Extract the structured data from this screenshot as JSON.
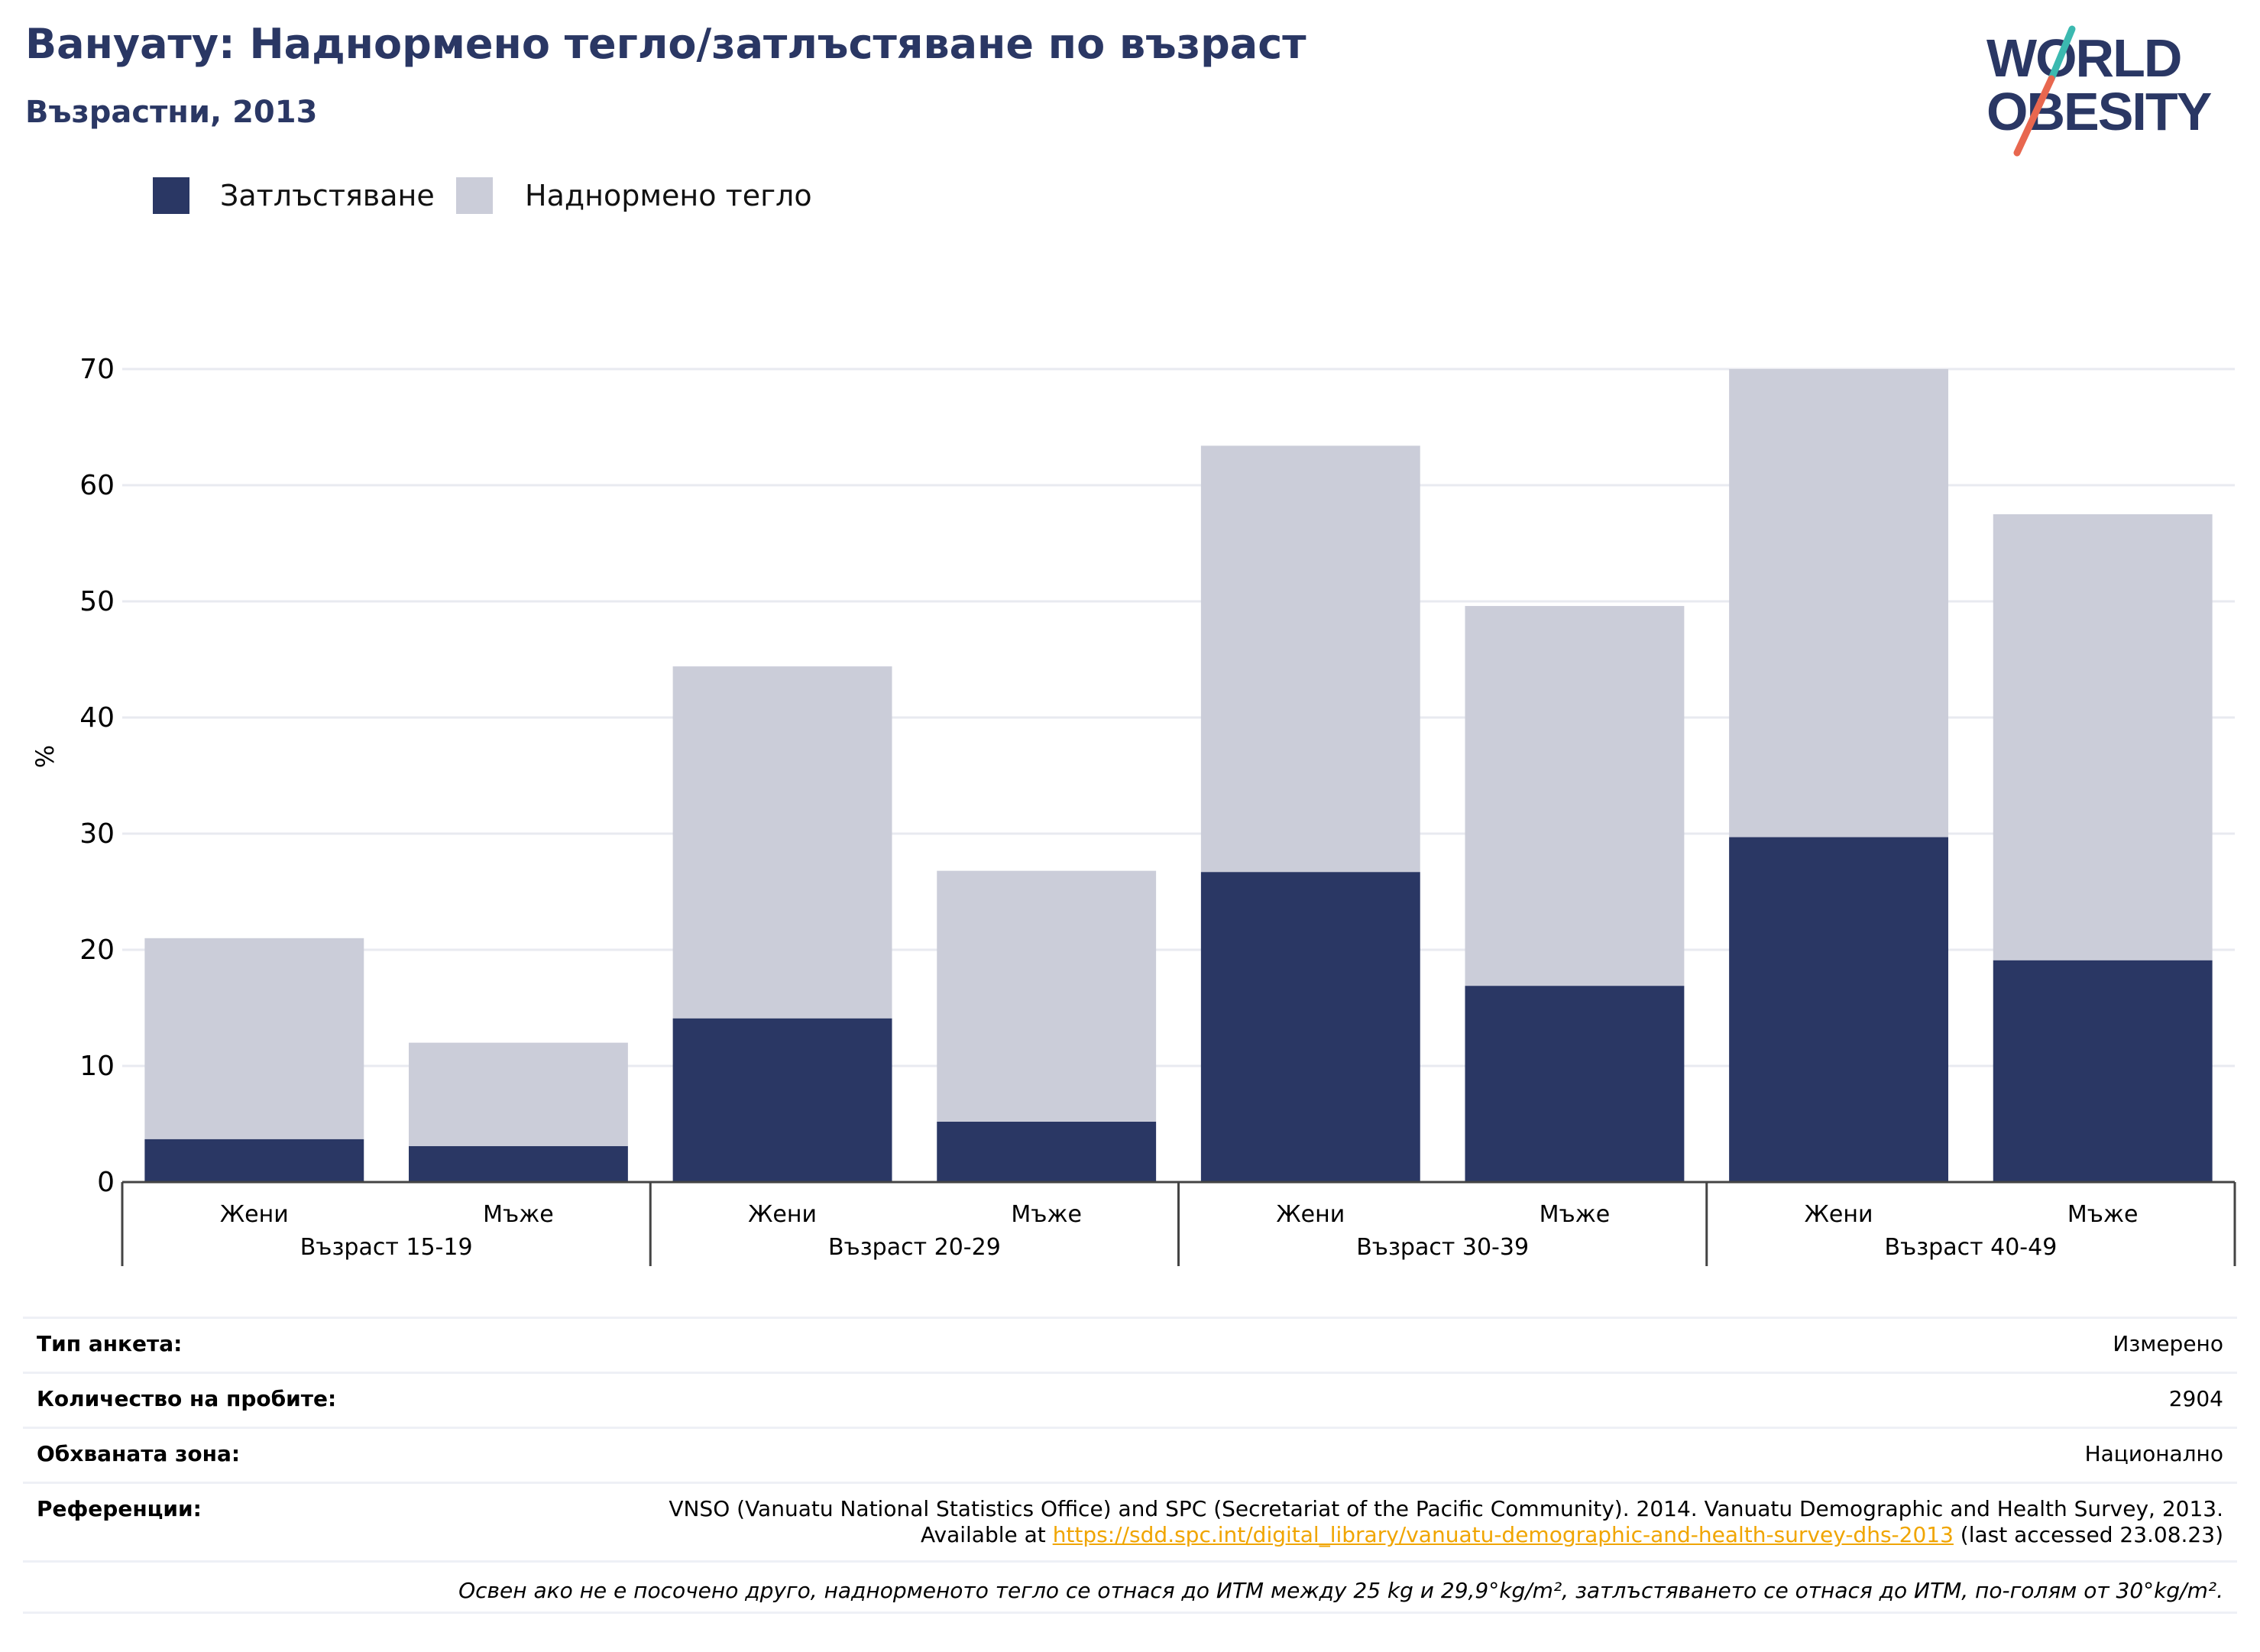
{
  "title": "Вануату: Наднормено тегло/затлъстяване по възраст",
  "subtitle": "Възрастни, 2013",
  "logo": {
    "line1": "WORLD",
    "line2": "OBESITY"
  },
  "colors": {
    "obesity": "#2a3764",
    "overweight": "#cbcdd9",
    "title": "#2a3764",
    "grid": "#e8eaf0",
    "link": "#f0a500",
    "logo_teal": "#3bb9b0",
    "logo_red": "#e8674f"
  },
  "legend": [
    {
      "label": "Затлъстяване",
      "color": "#2a3764"
    },
    {
      "label": "Наднормено тегло",
      "color": "#cbcdd9"
    }
  ],
  "chart_data": {
    "type": "bar",
    "stacked": true,
    "ylabel": "%",
    "ylim": [
      0,
      70
    ],
    "yticks": [
      0,
      10,
      20,
      30,
      40,
      50,
      60,
      70
    ],
    "grid": true,
    "legend_position": "top-left",
    "categories": [
      "Жени",
      "Мъже",
      "Жени",
      "Мъже",
      "Жени",
      "Мъже",
      "Жени",
      "Мъже"
    ],
    "groups": [
      {
        "label": "Възраст 15-19",
        "categories": [
          "Жени",
          "Мъже"
        ]
      },
      {
        "label": "Възраст 20-29",
        "categories": [
          "Жени",
          "Мъже"
        ]
      },
      {
        "label": "Възраст 30-39",
        "categories": [
          "Жени",
          "Мъже"
        ]
      },
      {
        "label": "Възраст 40-49",
        "categories": [
          "Жени",
          "Мъже"
        ]
      }
    ],
    "series": [
      {
        "name": "Затлъстяване",
        "color": "#2a3764",
        "values": [
          3.7,
          3.1,
          14.1,
          5.2,
          26.7,
          16.9,
          29.7,
          19.1
        ]
      },
      {
        "name": "Наднормено тегло",
        "color": "#cbcdd9",
        "values": [
          17.3,
          8.9,
          30.3,
          21.6,
          36.7,
          32.7,
          40.3,
          38.4
        ]
      }
    ]
  },
  "meta": {
    "survey_type": {
      "label": "Тип анкета:",
      "value": "Измерено"
    },
    "sample_size": {
      "label": "Количество на пробите:",
      "value": "2904"
    },
    "area": {
      "label": "Обхваната зона:",
      "value": "Национално"
    },
    "references": {
      "label": "Референции:",
      "text_before": "VNSO (Vanuatu National Statistics Office) and SPC (Secretariat of the Pacific Community). 2014. Vanuatu Demographic and Health Survey, 2013. Available at",
      "link": "https://sdd.spc.int/digital_library/vanuatu-demographic-and-health-survey-dhs-2013",
      "text_after": "(last accessed 23.08.23)"
    },
    "note": "Освен ако не е посочено друго, наднорменото тегло се отнася до ИТМ между 25 kg и 29,9°kg/m², затлъстяването се отнася до ИТМ, по-голям от 30°kg/m²."
  }
}
